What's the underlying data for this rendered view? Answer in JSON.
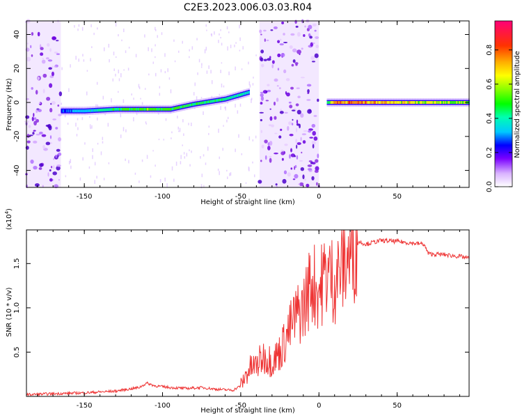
{
  "title": "C2E3.2023.006.03.03.R04",
  "chart_data": [
    {
      "type": "heatmap",
      "xlabel": "Height of straight line (km)",
      "ylabel": "Frequency (Hz)",
      "xlim": [
        -187,
        96
      ],
      "ylim": [
        -50,
        48
      ],
      "xticks": [
        -150,
        -100,
        -50,
        0,
        50
      ],
      "yticks": [
        -40,
        -20,
        0,
        20,
        40
      ],
      "colorbar": {
        "label": "Normalized spectral amplitude",
        "range": [
          0,
          0.97
        ],
        "ticks": [
          0.0,
          0.2,
          0.4,
          0.6,
          0.8
        ],
        "colormap": "rainbow (white-violet-blue-cyan-green-yellow-red)"
      },
      "ridge": {
        "x": [
          -165,
          -150,
          -130,
          -110,
          -95,
          -80,
          -60,
          -45,
          5,
          10,
          50,
          96
        ],
        "y": [
          -5,
          -5,
          -4,
          -4,
          -4,
          -1,
          2,
          6,
          0,
          0,
          0,
          0
        ],
        "amplitude": [
          0.3,
          0.4,
          0.5,
          0.6,
          0.55,
          0.5,
          0.5,
          0.45,
          0.5,
          0.85,
          0.75,
          0.6
        ]
      },
      "noise_regions": [
        [
          -187,
          -165
        ],
        [
          -38,
          0
        ]
      ]
    },
    {
      "type": "line",
      "xlabel": "Height of straight line (km)",
      "ylabel": "SNR (10 * v/v)",
      "y_multiplier": "(x10",
      "y_multiplier_exp": "4",
      "y_multiplier_close": ")",
      "xlim": [
        -187,
        96
      ],
      "ylim": [
        0,
        1.88
      ],
      "xticks": [
        -150,
        -100,
        -50,
        0,
        50
      ],
      "yticks": [
        0.5,
        1.0,
        1.5
      ],
      "color": "#ee3333",
      "series": [
        {
          "x": [
            -187,
            -170,
            -150,
            -130,
            -115,
            -110,
            -105,
            -95,
            -85,
            -75,
            -65,
            -55,
            -50,
            -45,
            -40,
            -35,
            -30,
            -25,
            -20,
            -15,
            -10,
            -5,
            0,
            5,
            10,
            15,
            20,
            25,
            30,
            40,
            50,
            60,
            67,
            70,
            80,
            90,
            96
          ],
          "y": [
            0.02,
            0.03,
            0.04,
            0.06,
            0.1,
            0.15,
            0.12,
            0.1,
            0.09,
            0.1,
            0.08,
            0.07,
            0.12,
            0.3,
            0.35,
            0.45,
            0.4,
            0.5,
            0.7,
            0.9,
            1.0,
            1.3,
            1.2,
            1.4,
            1.3,
            1.5,
            1.6,
            1.75,
            1.72,
            1.76,
            1.75,
            1.73,
            1.72,
            1.61,
            1.6,
            1.58,
            1.56
          ]
        }
      ]
    }
  ]
}
